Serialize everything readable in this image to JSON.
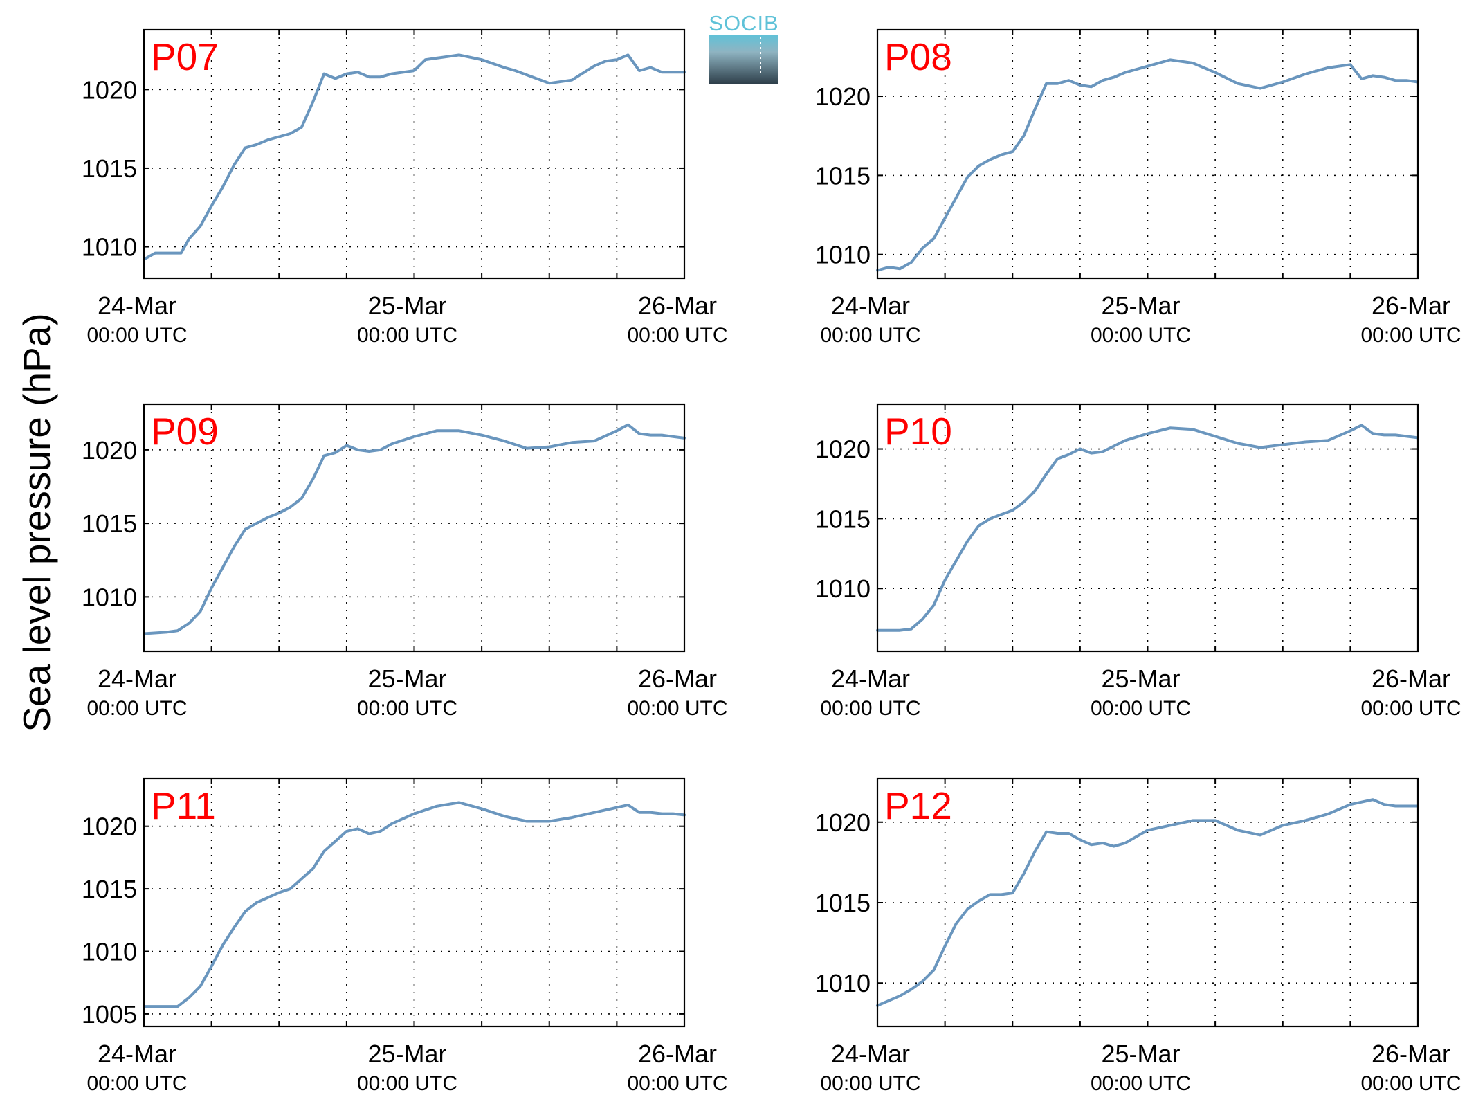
{
  "figure": {
    "ylabel": "Sea level pressure (hPa)",
    "logo_text": "SOCIB",
    "colors": {
      "line": "#6a96be",
      "title": "#ff0000",
      "grid": "#000000",
      "axis": "#000000",
      "logo_top": "#5fc2d8",
      "logo_bottom": "#2e3f4a"
    }
  },
  "chart_data": [
    {
      "type": "line",
      "title": "P07",
      "xlabel": "",
      "ylabel": "Sea level pressure (hPa)",
      "x_unit": "hours since 24-Mar 00:00 UTC",
      "xlim": [
        0,
        48
      ],
      "ylim": [
        1008,
        1023.8
      ],
      "yticks": [
        1010,
        1015,
        1020
      ],
      "xticks": [
        {
          "label": "24-Mar",
          "sub": "00:00 UTC"
        },
        {
          "label": "25-Mar",
          "sub": "00:00 UTC"
        },
        {
          "label": "26-Mar",
          "sub": "00:00 UTC"
        }
      ],
      "grid": true,
      "x": [
        0,
        1,
        3,
        3.3,
        4,
        5,
        6,
        7,
        8,
        9,
        10,
        11,
        12,
        13,
        14,
        15,
        16,
        17,
        18,
        19,
        20,
        21,
        22,
        24,
        25,
        26,
        28,
        30,
        32,
        33,
        36,
        38,
        40,
        41,
        42,
        43,
        44,
        45,
        46,
        46.5,
        47,
        48
      ],
      "values": [
        1009.2,
        1009.6,
        1009.6,
        1009.6,
        1010.5,
        1011.3,
        1012.6,
        1013.8,
        1015.2,
        1016.3,
        1016.5,
        1016.8,
        1017,
        1017.2,
        1017.6,
        1019.2,
        1021,
        1020.7,
        1021,
        1021.1,
        1020.8,
        1020.8,
        1021,
        1021.2,
        1021.9,
        1022,
        1022.2,
        1021.9,
        1021.4,
        1021.2,
        1020.4,
        1020.6,
        1021.5,
        1021.8,
        1021.9,
        1022.2,
        1021.2,
        1021.4,
        1021.1,
        1021.1,
        1021.1,
        1021.1
      ]
    },
    {
      "type": "line",
      "title": "P08",
      "xlabel": "",
      "ylabel": "Sea level pressure (hPa)",
      "x_unit": "hours since 24-Mar 00:00 UTC",
      "xlim": [
        0,
        48
      ],
      "ylim": [
        1008.5,
        1024.2
      ],
      "yticks": [
        1010,
        1015,
        1020
      ],
      "xticks": [
        {
          "label": "24-Mar",
          "sub": "00:00 UTC"
        },
        {
          "label": "25-Mar",
          "sub": "00:00 UTC"
        },
        {
          "label": "26-Mar",
          "sub": "00:00 UTC"
        }
      ],
      "grid": true,
      "x": [
        0,
        1,
        2,
        3,
        4,
        5,
        6,
        7,
        8,
        9,
        10,
        11,
        12,
        13,
        14,
        15,
        16,
        17,
        18,
        19,
        20,
        21,
        22,
        24,
        26,
        28,
        30,
        32,
        34,
        36,
        38,
        40,
        42,
        43,
        44,
        45,
        46,
        47,
        48
      ],
      "values": [
        1009,
        1009.2,
        1009.1,
        1009.5,
        1010.4,
        1011,
        1012.3,
        1013.6,
        1014.9,
        1015.6,
        1016,
        1016.3,
        1016.5,
        1017.5,
        1019.2,
        1020.8,
        1020.8,
        1021,
        1020.7,
        1020.6,
        1021,
        1021.2,
        1021.5,
        1021.9,
        1022.3,
        1022.1,
        1021.5,
        1020.8,
        1020.5,
        1020.9,
        1021.4,
        1021.8,
        1022,
        1021.1,
        1021.3,
        1021.2,
        1021,
        1021,
        1020.9
      ]
    },
    {
      "type": "line",
      "title": "P09",
      "xlabel": "",
      "ylabel": "Sea level pressure (hPa)",
      "x_unit": "hours since 24-Mar 00:00 UTC",
      "xlim": [
        0,
        48
      ],
      "ylim": [
        1006.3,
        1023.1
      ],
      "yticks": [
        1010,
        1015,
        1020
      ],
      "xticks": [
        {
          "label": "24-Mar",
          "sub": "00:00 UTC"
        },
        {
          "label": "25-Mar",
          "sub": "00:00 UTC"
        },
        {
          "label": "26-Mar",
          "sub": "00:00 UTC"
        }
      ],
      "grid": true,
      "x": [
        0,
        2,
        3,
        4,
        5,
        6,
        7,
        8,
        9,
        10,
        11,
        12,
        13,
        14,
        15,
        16,
        17,
        18,
        19,
        20,
        21,
        22,
        24,
        26,
        28,
        30,
        32,
        34,
        36,
        38,
        40,
        42,
        43,
        44,
        45,
        46,
        47,
        48
      ],
      "values": [
        1007.5,
        1007.6,
        1007.7,
        1008.2,
        1009,
        1010.6,
        1012,
        1013.4,
        1014.6,
        1015,
        1015.4,
        1015.7,
        1016.1,
        1016.7,
        1018,
        1019.6,
        1019.8,
        1020.3,
        1020,
        1019.9,
        1020,
        1020.4,
        1020.9,
        1021.3,
        1021.3,
        1021,
        1020.6,
        1020.1,
        1020.2,
        1020.5,
        1020.6,
        1021.3,
        1021.7,
        1021.1,
        1021,
        1021,
        1020.9,
        1020.8
      ]
    },
    {
      "type": "line",
      "title": "P10",
      "xlabel": "",
      "ylabel": "Sea level pressure (hPa)",
      "x_unit": "hours since 24-Mar 00:00 UTC",
      "xlim": [
        0,
        48
      ],
      "ylim": [
        1005.5,
        1023.2
      ],
      "yticks": [
        1010,
        1015,
        1020
      ],
      "xticks": [
        {
          "label": "24-Mar",
          "sub": "00:00 UTC"
        },
        {
          "label": "25-Mar",
          "sub": "00:00 UTC"
        },
        {
          "label": "26-Mar",
          "sub": "00:00 UTC"
        }
      ],
      "grid": true,
      "x": [
        0,
        2,
        3,
        4,
        5,
        6,
        7,
        8,
        9,
        10,
        11,
        12,
        13,
        14,
        15,
        16,
        17,
        18,
        19,
        20,
        21,
        22,
        24,
        26,
        28,
        30,
        32,
        34,
        36,
        38,
        40,
        42,
        43,
        44,
        45,
        46,
        47,
        48
      ],
      "values": [
        1007,
        1007,
        1007.1,
        1007.8,
        1008.8,
        1010.6,
        1012,
        1013.4,
        1014.5,
        1015,
        1015.3,
        1015.6,
        1016.2,
        1017,
        1018.2,
        1019.3,
        1019.6,
        1020,
        1019.7,
        1019.8,
        1020.2,
        1020.6,
        1021.1,
        1021.5,
        1021.4,
        1020.9,
        1020.4,
        1020.1,
        1020.3,
        1020.5,
        1020.6,
        1021.3,
        1021.7,
        1021.1,
        1021,
        1021,
        1020.9,
        1020.8
      ]
    },
    {
      "type": "line",
      "title": "P11",
      "xlabel": "",
      "ylabel": "Sea level pressure (hPa)",
      "x_unit": "hours since 24-Mar 00:00 UTC",
      "xlim": [
        0,
        48
      ],
      "ylim": [
        1004,
        1023.8
      ],
      "yticks": [
        1005,
        1010,
        1015,
        1020
      ],
      "xticks": [
        {
          "label": "24-Mar",
          "sub": "00:00 UTC"
        },
        {
          "label": "25-Mar",
          "sub": "00:00 UTC"
        },
        {
          "label": "26-Mar",
          "sub": "00:00 UTC"
        }
      ],
      "grid": true,
      "x": [
        0,
        2,
        3,
        4,
        5,
        6,
        7,
        8,
        9,
        10,
        11,
        12,
        13,
        14,
        15,
        16,
        17,
        18,
        19,
        20,
        21,
        22,
        24,
        26,
        28,
        30,
        32,
        34,
        36,
        38,
        40,
        42,
        43,
        44,
        45,
        46,
        47,
        48
      ],
      "values": [
        1005.6,
        1005.6,
        1005.6,
        1006.3,
        1007.2,
        1008.8,
        1010.5,
        1011.9,
        1013.2,
        1013.9,
        1014.3,
        1014.7,
        1015,
        1015.8,
        1016.6,
        1018,
        1018.8,
        1019.6,
        1019.8,
        1019.4,
        1019.6,
        1020.2,
        1021,
        1021.6,
        1021.9,
        1021.4,
        1020.8,
        1020.4,
        1020.4,
        1020.7,
        1021.1,
        1021.5,
        1021.7,
        1021.1,
        1021.1,
        1021,
        1021,
        1020.9
      ]
    },
    {
      "type": "line",
      "title": "P12",
      "xlabel": "",
      "ylabel": "Sea level pressure (hPa)",
      "x_unit": "hours since 24-Mar 00:00 UTC",
      "xlim": [
        0,
        48
      ],
      "ylim": [
        1007.3,
        1022.7
      ],
      "yticks": [
        1010,
        1015,
        1020
      ],
      "xticks": [
        {
          "label": "24-Mar",
          "sub": "00:00 UTC"
        },
        {
          "label": "25-Mar",
          "sub": "00:00 UTC"
        },
        {
          "label": "26-Mar",
          "sub": "00:00 UTC"
        }
      ],
      "grid": true,
      "x": [
        0,
        1,
        2,
        3,
        4,
        5,
        6,
        7,
        8,
        9,
        10,
        11,
        12,
        13,
        14,
        15,
        16,
        17,
        18,
        19,
        20,
        21,
        22,
        23,
        24,
        26,
        28,
        30,
        32,
        34,
        36,
        38,
        40,
        42,
        44,
        45,
        46,
        47,
        48
      ],
      "values": [
        1008.6,
        1008.9,
        1009.2,
        1009.6,
        1010.1,
        1010.8,
        1012.3,
        1013.7,
        1014.6,
        1015.1,
        1015.5,
        1015.5,
        1015.6,
        1016.8,
        1018.2,
        1019.4,
        1019.3,
        1019.3,
        1018.9,
        1018.6,
        1018.7,
        1018.5,
        1018.7,
        1019.1,
        1019.5,
        1019.8,
        1020.1,
        1020.1,
        1019.5,
        1019.2,
        1019.8,
        1020.1,
        1020.5,
        1021.1,
        1021.4,
        1021.1,
        1021,
        1021,
        1021
      ]
    }
  ]
}
